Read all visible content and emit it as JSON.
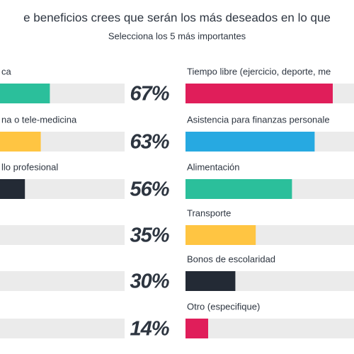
{
  "chart_data": [
    {
      "type": "bar",
      "title": "e beneficios crees que serán los más deseados en lo que",
      "subtitle": "Selecciona los 5 más importantes",
      "categories": [
        "ca",
        "na o tele-medicina",
        "llo profesional",
        null,
        null,
        null
      ],
      "values": [
        67,
        63,
        56,
        35,
        30,
        14
      ],
      "value_labels": [
        "67%",
        "63%",
        "56%",
        "35%",
        "30%",
        "14%"
      ],
      "colors": [
        "#2bbf9b",
        "#ffc542",
        "#232a35",
        "#e01e5a",
        "#27a9e1",
        "#2bbf9b"
      ],
      "xlim": [
        0,
        100
      ]
    },
    {
      "type": "bar",
      "categories": [
        "Tiempo libre (ejercicio, deporte, me",
        "Asistencia para finanzas personale",
        "Alimentación",
        "Transporte",
        "Bonos de escolaridad",
        "Otro (especifique)"
      ],
      "values": [
        65,
        57,
        47,
        31,
        22,
        10
      ],
      "colors": [
        "#e01e5a",
        "#27a9e1",
        "#2bbf9b",
        "#ffc542",
        "#232a35",
        "#e01e5a"
      ],
      "xlim": [
        0,
        100
      ]
    }
  ]
}
